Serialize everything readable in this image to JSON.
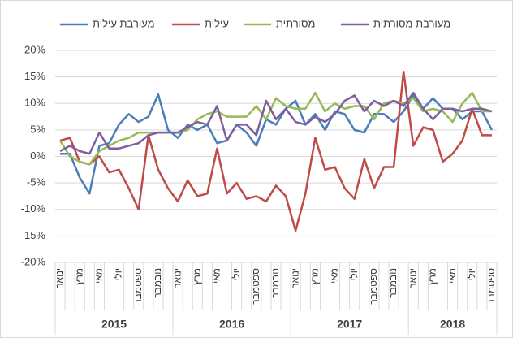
{
  "chart_data": {
    "type": "line",
    "categories": [
      "ינואר",
      null,
      "מרץ",
      null,
      "מאי",
      null,
      "יולי",
      null,
      "ספטמבר",
      null,
      "נובמבר",
      null,
      "ינואר",
      null,
      "מרץ",
      null,
      "מאי",
      null,
      "יולי",
      null,
      "ספטמבר",
      null,
      "נובמבר",
      null,
      "ינואר",
      null,
      "מרץ",
      null,
      "מאי",
      null,
      "יולי",
      null,
      "ספטמבר",
      null,
      "נובמבר",
      null,
      "ינואר",
      null,
      "מרץ",
      null,
      "מאי",
      null,
      "יולי",
      null,
      "ספטמבר"
    ],
    "years": [
      "2015",
      "2016",
      "2017",
      "2018"
    ],
    "series": [
      {
        "name": "מעורבת עילית",
        "color": "#4a7ebb",
        "values": [
          0.5,
          0.5,
          -4,
          -7,
          2,
          2.5,
          6,
          8,
          6.5,
          7.5,
          11.7,
          5,
          3.5,
          6,
          5,
          6,
          2.5,
          3,
          6,
          4.5,
          2,
          7,
          6,
          9,
          10.5,
          6,
          8,
          5,
          8.5,
          8,
          5,
          4.5,
          8,
          8,
          6.5,
          8.5,
          11.5,
          9,
          11,
          9,
          9,
          7,
          8.5,
          8.5,
          5
        ]
      },
      {
        "name": "עילית",
        "color": "#be4b48",
        "values": [
          3,
          3.5,
          -1,
          -1.5,
          0,
          -3,
          -2.5,
          -6,
          -10,
          4,
          -2.5,
          -6,
          -8.5,
          -4.5,
          -7.5,
          -7,
          1.5,
          -7,
          -5,
          -8,
          -7.5,
          -8.5,
          -5.5,
          -7.5,
          -14,
          -7,
          3.5,
          -2.5,
          -2,
          -6,
          -8,
          -0.5,
          -6,
          -2,
          -2,
          16,
          2,
          5.5,
          5,
          -1,
          0.5,
          3,
          9,
          4,
          4
        ]
      },
      {
        "name": "מסורתית",
        "color": "#98b954",
        "values": [
          3,
          0,
          -1,
          -1.5,
          1,
          2,
          3,
          3.5,
          4.5,
          4.5,
          4.5,
          4.5,
          4.5,
          5,
          7,
          8,
          8.5,
          7.5,
          7.5,
          7.5,
          9.5,
          7,
          11,
          9.5,
          9,
          9,
          12,
          8.5,
          10,
          9,
          9.5,
          9.5,
          7,
          10,
          10.5,
          10,
          11,
          8.5,
          9,
          8.5,
          6.5,
          10,
          12,
          8.5,
          8.5
        ]
      },
      {
        "name": "מעורבת מסורתית",
        "color": "#7d5fa0",
        "values": [
          1,
          2,
          1,
          0.5,
          4.5,
          1.5,
          1.5,
          2,
          2.5,
          4,
          4.5,
          4.5,
          4.5,
          5.5,
          6.5,
          6,
          9.5,
          3,
          6,
          6,
          4,
          10.5,
          7,
          9,
          6.5,
          6,
          7.5,
          6.5,
          8,
          10.5,
          11.5,
          8.5,
          10.5,
          9.5,
          10.5,
          9.5,
          12,
          9,
          7,
          9,
          9,
          8.5,
          9,
          9,
          8.5
        ]
      }
    ],
    "ylim": [
      -20,
      20
    ],
    "yticks": [
      {
        "value": -20,
        "label": "-20%"
      },
      {
        "value": -15,
        "label": "-15%"
      },
      {
        "value": -10,
        "label": "-10%"
      },
      {
        "value": -5,
        "label": "-5%"
      },
      {
        "value": 0,
        "label": "0%"
      },
      {
        "value": 5,
        "label": "5%"
      },
      {
        "value": 10,
        "label": "10%"
      },
      {
        "value": 15,
        "label": "15%"
      },
      {
        "value": 20,
        "label": "20%"
      }
    ],
    "grid": true
  }
}
